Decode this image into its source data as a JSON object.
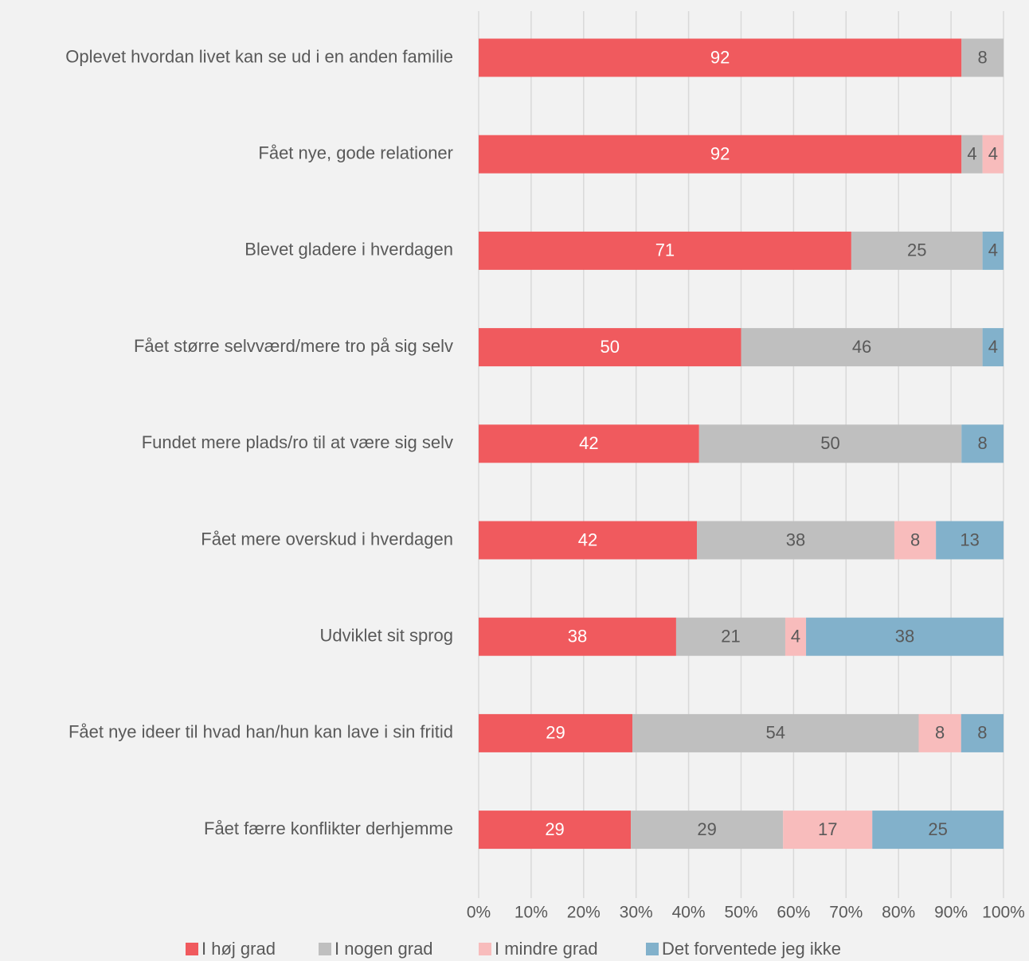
{
  "chart_data": {
    "type": "bar",
    "orientation": "horizontal",
    "stacked": true,
    "percent_stacked": true,
    "categories": [
      "Oplevet hvordan livet kan se ud i en anden familie",
      "Fået nye, gode relationer",
      "Blevet gladere i hverdagen",
      "Fået større selvværd/mere tro på sig selv",
      "Fundet mere plads/ro til at være sig selv",
      "Fået mere overskud i hverdagen",
      "Udviklet sit sprog",
      "Fået nye ideer til hvad han/hun kan lave i sin fritid",
      "Fået færre konflikter derhjemme"
    ],
    "series": [
      {
        "name": "I høj grad",
        "color": "#f05a5e",
        "label_color": "#ffffff",
        "values": [
          92,
          92,
          71,
          50,
          42,
          42,
          38,
          29,
          29
        ]
      },
      {
        "name": "I nogen grad",
        "color": "#bfbfbf",
        "label_color": "#595959",
        "values": [
          8,
          4,
          25,
          46,
          50,
          38,
          21,
          54,
          29
        ]
      },
      {
        "name": "I mindre grad",
        "color": "#f8bcbc",
        "label_color": "#595959",
        "values": [
          0,
          4,
          0,
          0,
          0,
          8,
          4,
          8,
          17
        ]
      },
      {
        "name": "Det forventede jeg ikke",
        "color": "#82b1cb",
        "label_color": "#595959",
        "values": [
          0,
          0,
          4,
          4,
          8,
          13,
          38,
          8,
          25
        ]
      }
    ],
    "xaxis": {
      "ticks": [
        "0%",
        "10%",
        "20%",
        "30%",
        "40%",
        "50%",
        "60%",
        "70%",
        "80%",
        "90%",
        "100%"
      ],
      "range": [
        0,
        100
      ]
    },
    "grid": true,
    "legend_position": "bottom",
    "title": "",
    "xlabel": "",
    "ylabel": ""
  }
}
